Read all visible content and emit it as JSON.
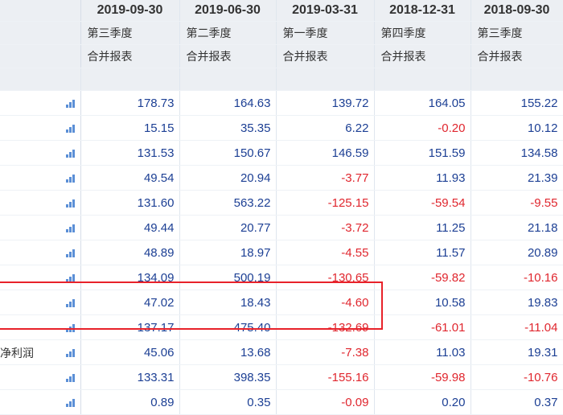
{
  "columns": [
    {
      "date": "2019-09-30",
      "quarter": "第三季度",
      "report_type": "合并报表"
    },
    {
      "date": "2019-06-30",
      "quarter": "第二季度",
      "report_type": "合并报表"
    },
    {
      "date": "2019-03-31",
      "quarter": "第一季度",
      "report_type": "合并报表"
    },
    {
      "date": "2018-12-31",
      "quarter": "第四季度",
      "report_type": "合并报表"
    },
    {
      "date": "2018-09-30",
      "quarter": "第三季度",
      "report_type": "合并报表"
    }
  ],
  "rows": [
    {
      "label": "",
      "values": [
        "178.73",
        "164.63",
        "139.72",
        "164.05",
        "155.22"
      ]
    },
    {
      "label": "",
      "values": [
        "15.15",
        "35.35",
        "6.22",
        "-0.20",
        "10.12"
      ]
    },
    {
      "label": "",
      "values": [
        "131.53",
        "150.67",
        "146.59",
        "151.59",
        "134.58"
      ]
    },
    {
      "label": "",
      "values": [
        "49.54",
        "20.94",
        "-3.77",
        "11.93",
        "21.39"
      ]
    },
    {
      "label": "",
      "values": [
        "131.60",
        "563.22",
        "-125.15",
        "-59.54",
        "-9.55"
      ]
    },
    {
      "label": "",
      "values": [
        "49.44",
        "20.77",
        "-3.72",
        "11.25",
        "21.18"
      ]
    },
    {
      "label": "",
      "values": [
        "48.89",
        "18.97",
        "-4.55",
        "11.57",
        "20.89"
      ]
    },
    {
      "label": "",
      "values": [
        "134.09",
        "500.19",
        "-130.65",
        "-59.82",
        "-10.16"
      ]
    },
    {
      "label": "",
      "values": [
        "47.02",
        "18.43",
        "-4.60",
        "10.58",
        "19.83"
      ]
    },
    {
      "label": "",
      "values": [
        "137.17",
        "475.40",
        "-132.69",
        "-61.01",
        "-11.04"
      ]
    },
    {
      "label": "净利润",
      "values": [
        "45.06",
        "13.68",
        "-7.38",
        "11.03",
        "19.31"
      ]
    },
    {
      "label": "",
      "values": [
        "133.31",
        "398.35",
        "-155.16",
        "-59.98",
        "-10.76"
      ]
    },
    {
      "label": "",
      "values": [
        "0.89",
        "0.35",
        "-0.09",
        "0.20",
        "0.37"
      ]
    }
  ],
  "colors": {
    "positive": "#1c3f94",
    "negative": "#e0262e",
    "highlight": "#e8222a",
    "header_bg": "#eceff3"
  },
  "row_icon": "bar-chart-icon"
}
